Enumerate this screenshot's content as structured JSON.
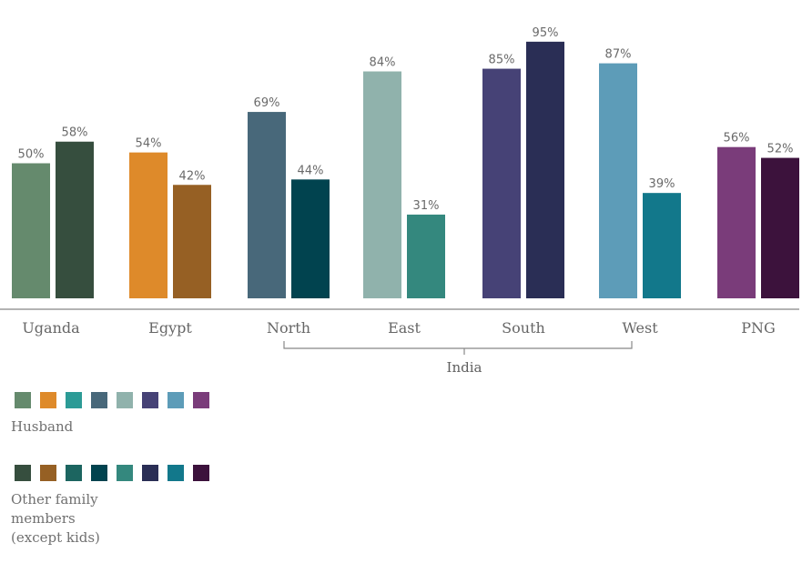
{
  "chart_data": {
    "type": "bar",
    "title": "",
    "xlabel": "",
    "ylabel": "",
    "ylim": [
      0,
      100
    ],
    "grid": false,
    "categories": [
      "Uganda",
      "Egypt",
      "North",
      "East",
      "South",
      "West",
      "PNG"
    ],
    "group_label": {
      "text": "India",
      "categories": [
        "North",
        "East",
        "South",
        "West"
      ]
    },
    "series": [
      {
        "name": "Husband",
        "values": [
          50,
          54,
          69,
          84,
          85,
          87,
          56
        ]
      },
      {
        "name": "Other family members (except kids)",
        "values": [
          58,
          42,
          44,
          31,
          95,
          39,
          52
        ]
      }
    ],
    "value_labels": [
      [
        "50%",
        "54%",
        "69%",
        "84%",
        "85%",
        "87%",
        "56%"
      ],
      [
        "58%",
        "42%",
        "44%",
        "31%",
        "95%",
        "39%",
        "52%"
      ]
    ],
    "bar_colors": [
      [
        "#658a6d",
        "#de8a2a",
        "#48687a",
        "#90b2ac",
        "#464276",
        "#5d9cb8",
        "#7a3c7a"
      ],
      [
        "#364e3e",
        "#966024",
        "#01434f",
        "#34887e",
        "#2a2e55",
        "#12788b",
        "#3c123c"
      ]
    ],
    "legend_position": "bottom-left"
  },
  "legend": {
    "husband_label": "Husband",
    "others_label": "Other family\nmembers\n(except kids)",
    "husband_swatches": [
      "#658a6d",
      "#de8a2a",
      "#2c9b96",
      "#48687a",
      "#90b2ac",
      "#464276",
      "#5d9cb8",
      "#7a3c7a"
    ],
    "others_swatches": [
      "#364e3e",
      "#966024",
      "#1c6560",
      "#01434f",
      "#34887e",
      "#2a2e55",
      "#12788b",
      "#3c123c"
    ]
  }
}
